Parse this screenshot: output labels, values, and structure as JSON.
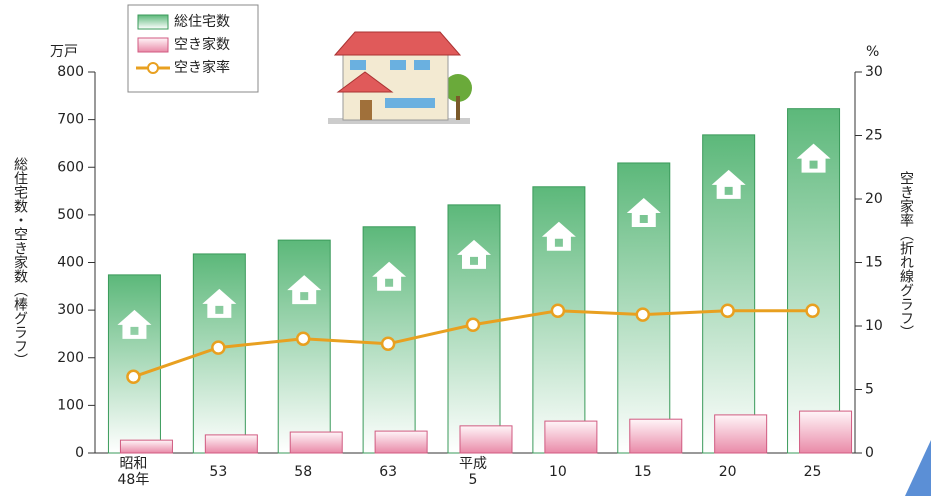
{
  "chart_data": {
    "type": "bar-line",
    "y_unit": "万戸",
    "y2_unit": "%",
    "ylabel": "総住宅数・空き家数（棒グラフ）",
    "y2label": "空き家率（折れ線グラフ）",
    "categories": [
      "昭和\n48年",
      "53",
      "58",
      "63",
      "平成\n5",
      "10",
      "15",
      "20",
      "25"
    ],
    "series": [
      {
        "name": "総住宅数",
        "type": "bar",
        "color": "#5cb87a",
        "values": [
          374,
          418,
          447,
          475,
          521,
          559,
          609,
          668,
          723
        ]
      },
      {
        "name": "空き家数",
        "type": "bar",
        "color": "#e98aa8",
        "values": [
          27,
          38,
          44,
          46,
          57,
          67,
          71,
          80,
          88
        ]
      },
      {
        "name": "空き家率",
        "type": "line",
        "axis": "y2",
        "color": "#e8a020",
        "values": [
          6.0,
          8.3,
          9.0,
          8.6,
          10.1,
          11.2,
          10.9,
          11.2,
          11.2
        ]
      }
    ],
    "ylim": [
      0,
      800
    ],
    "yticks": [
      0,
      100,
      200,
      300,
      400,
      500,
      600,
      700,
      800
    ],
    "y2lim": [
      0,
      30
    ],
    "y2ticks": [
      0,
      5,
      10,
      15,
      20,
      25,
      30
    ]
  }
}
